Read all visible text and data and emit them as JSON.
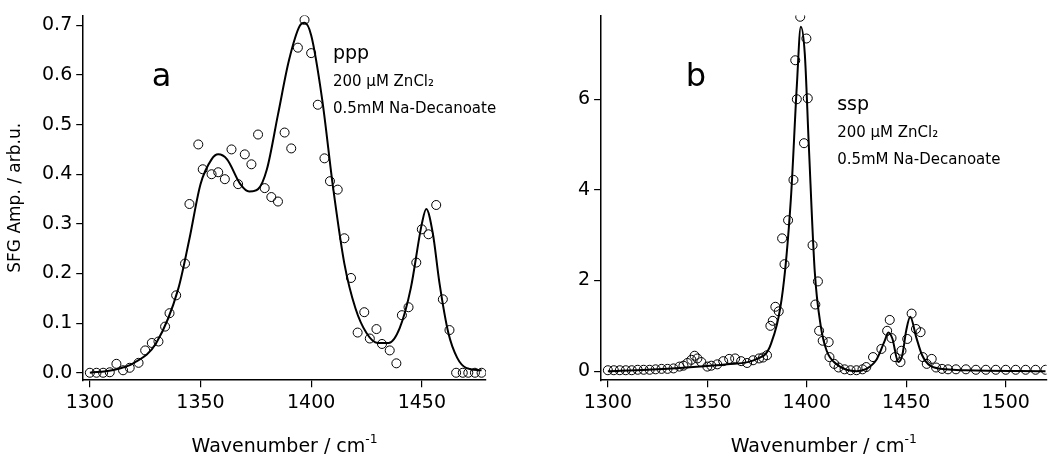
{
  "chart_data": [
    {
      "type": "scatter",
      "title": "a",
      "xlabel": "Wavenumber / cm$^{-1}$",
      "ylabel": "SFG Amp. / arb.u.",
      "annotations": [
        "ppp",
        "200 μM ZnCl₂",
        "0.5mM Na-Decanoate"
      ],
      "xlim": [
        1297,
        1479
      ],
      "xticks": [
        1300,
        1350,
        1400,
        1450
      ],
      "ylim": [
        -0.015,
        0.72
      ],
      "yticks": [
        {
          "value": 0,
          "label": "0.0"
        },
        0.1,
        0.2,
        0.3,
        0.4,
        0.5,
        0.6,
        0.7
      ],
      "grid": false,
      "legend": false,
      "series": [
        {
          "type": "scatter",
          "marker": "circle",
          "color": "#000000",
          "x": [
            1300,
            1303,
            1306,
            1309,
            1312,
            1315,
            1318,
            1322,
            1325,
            1328,
            1331,
            1334,
            1336,
            1339,
            1343,
            1345,
            1349,
            1351,
            1355,
            1358,
            1361,
            1364,
            1367,
            1370,
            1373,
            1376,
            1379,
            1382,
            1385,
            1388,
            1391,
            1394,
            1397,
            1400,
            1403,
            1406,
            1408.5,
            1412,
            1415,
            1418,
            1421,
            1424,
            1426.5,
            1429.5,
            1432,
            1435.5,
            1438.5,
            1441,
            1444,
            1447.5,
            1450,
            1453,
            1456.5,
            1459.5,
            1462.5,
            1465.5,
            1468.5,
            1471,
            1474,
            1477
          ],
          "values": [
            0,
            0,
            0,
            0.001,
            0.018,
            0.005,
            0.01,
            0.02,
            0.045,
            0.06,
            0.063,
            0.093,
            0.12,
            0.156,
            0.22,
            0.34,
            0.46,
            0.41,
            0.4,
            0.404,
            0.39,
            0.45,
            0.38,
            0.44,
            0.42,
            0.48,
            0.372,
            0.354,
            0.345,
            0.484,
            0.452,
            0.655,
            0.711,
            0.644,
            0.54,
            0.432,
            0.386,
            0.369,
            0.271,
            0.191,
            0.081,
            0.122,
            0.069,
            0.088,
            0.058,
            0.045,
            0.019,
            0.116,
            0.132,
            0.222,
            0.289,
            0.279,
            0.338,
            0.148,
            0.086,
            0,
            0,
            0,
            0,
            0
          ]
        },
        {
          "type": "line",
          "marker": "none",
          "line_style": "solid",
          "color": "#000000",
          "x": [
            1300,
            1310,
            1320,
            1330,
            1340,
            1345,
            1350,
            1355,
            1358,
            1362,
            1368,
            1372,
            1376,
            1380,
            1385,
            1390,
            1395,
            1397,
            1400,
            1405,
            1410,
            1415,
            1420,
            1425,
            1430,
            1435,
            1440,
            1445,
            1450,
            1452,
            1455,
            1458,
            1462,
            1466,
            1470,
            1477
          ],
          "values": [
            0,
            0.005,
            0.02,
            0.06,
            0.17,
            0.27,
            0.38,
            0.43,
            0.44,
            0.43,
            0.38,
            0.365,
            0.37,
            0.41,
            0.52,
            0.63,
            0.7,
            0.705,
            0.68,
            0.55,
            0.37,
            0.22,
            0.13,
            0.08,
            0.06,
            0.06,
            0.09,
            0.17,
            0.3,
            0.33,
            0.28,
            0.18,
            0.08,
            0.03,
            0.01,
            0.005
          ]
        }
      ]
    },
    {
      "type": "scatter",
      "title": "b",
      "xlabel": "Wavenumber / cm$^{-1}$",
      "annotations": [
        "ssp",
        "200 μM ZnCl₂",
        "0.5mM Na-Decanoate"
      ],
      "xlim": [
        1296.6,
        1520.5
      ],
      "xticks": [
        1300,
        1350,
        1400,
        1450,
        1500
      ],
      "ylim": [
        -0.2,
        7.85
      ],
      "yticks": [
        0,
        2,
        4,
        6
      ],
      "grid": false,
      "legend": false,
      "series": [
        {
          "type": "scatter",
          "marker": "circle",
          "color": "#000000",
          "x": [
            1300,
            1303,
            1306,
            1309,
            1312,
            1315,
            1318,
            1321,
            1324,
            1327,
            1330,
            1333,
            1336,
            1338,
            1340,
            1342,
            1343.6,
            1345,
            1347,
            1350,
            1352,
            1355,
            1358,
            1361,
            1364,
            1367,
            1370,
            1373,
            1376,
            1378,
            1380,
            1381.7,
            1382.9,
            1384.2,
            1385.9,
            1387.6,
            1388.8,
            1390.6,
            1393.3,
            1394.2,
            1395,
            1396.7,
            1398.6,
            1399.8,
            1400.5,
            1402.9,
            1404.3,
            1405.6,
            1406.2,
            1408,
            1411,
            1411.4,
            1413.8,
            1416,
            1419,
            1422,
            1425,
            1428,
            1429.9,
            1433.3,
            1437.5,
            1440.4,
            1441.7,
            1442.6,
            1444.3,
            1447.1,
            1447.6,
            1450.5,
            1452.7,
            1454.9,
            1457.2,
            1458.3,
            1460.3,
            1462.8,
            1465,
            1468,
            1471,
            1475,
            1480,
            1485,
            1490,
            1495,
            1500,
            1505,
            1510,
            1515,
            1520
          ],
          "values": [
            0.02,
            0.02,
            0.02,
            0.02,
            0.02,
            0.03,
            0.03,
            0.03,
            0.04,
            0.05,
            0.05,
            0.06,
            0.1,
            0.12,
            0.18,
            0.25,
            0.34,
            0.28,
            0.2,
            0.1,
            0.12,
            0.15,
            0.22,
            0.27,
            0.28,
            0.22,
            0.18,
            0.24,
            0.28,
            0.3,
            0.35,
            1.0,
            1.11,
            1.42,
            1.32,
            2.93,
            2.36,
            3.33,
            4.22,
            6.86,
            6.0,
            7.82,
            5.03,
            7.34,
            6.02,
            2.78,
            1.47,
            1.98,
            0.89,
            0.67,
            0.64,
            0.31,
            0.16,
            0.08,
            0.04,
            0.02,
            0.02,
            0.04,
            0.09,
            0.31,
            0.49,
            0.89,
            1.13,
            0.73,
            0.31,
            0.2,
            0.45,
            0.71,
            1.27,
            0.93,
            0.86,
            0.31,
            0.16,
            0.27,
            0.08,
            0.05,
            0.04,
            0.04,
            0.04,
            0.03,
            0.03,
            0.03,
            0.03,
            0.03,
            0.03,
            0.03,
            0.03
          ]
        },
        {
          "type": "line",
          "marker": "none",
          "line_style": "solid",
          "color": "#000000",
          "x": [
            1300,
            1320,
            1340,
            1360,
            1375,
            1382,
            1388,
            1392,
            1395,
            1397,
            1399,
            1401,
            1404,
            1407,
            1410,
            1415,
            1420,
            1425,
            1430,
            1435,
            1439,
            1441,
            1443,
            1446,
            1448,
            1450,
            1452,
            1455,
            1458,
            1462,
            1470,
            1480,
            1520
          ],
          "values": [
            0,
            0.03,
            0.08,
            0.15,
            0.27,
            0.6,
            1.8,
            3.8,
            6.3,
            7.6,
            7.0,
            5.0,
            2.2,
            1.0,
            0.45,
            0.15,
            0.03,
            0,
            0.05,
            0.25,
            0.65,
            0.85,
            0.72,
            0.2,
            0.35,
            0.9,
            1.2,
            0.75,
            0.35,
            0.12,
            0.04,
            0.02,
            0
          ]
        }
      ]
    }
  ]
}
